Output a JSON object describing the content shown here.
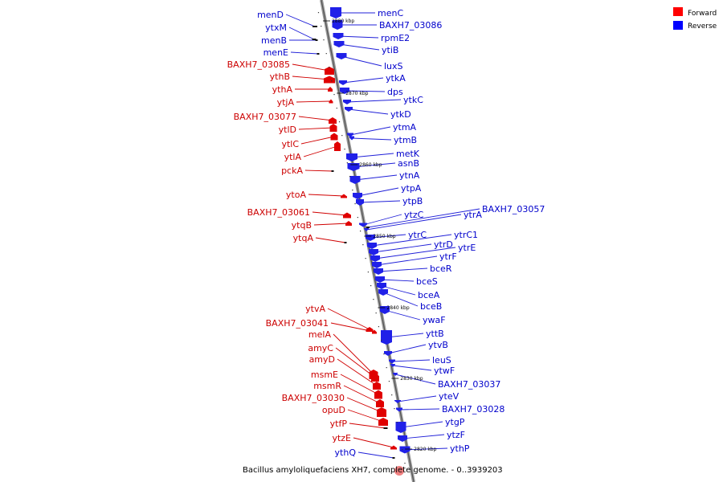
{
  "caption": "Bacillus amyloliquefaciens XH7, complete genome. - 0..3939203",
  "legend": [
    {
      "label": "Forward",
      "color": "#ff0000"
    },
    {
      "label": "Reverse",
      "color": "#0000ff"
    }
  ],
  "colors": {
    "forward": "#e00000",
    "reverse": "#2020e8",
    "forward_line": "#d00000",
    "reverse_line": "#2020d8"
  },
  "tick_labels": [
    "2880 kbp",
    "2870 kbp",
    "2860 kbp",
    "2850 kbp",
    "2840 kbp",
    "2830 kbp",
    "2820 kbp"
  ],
  "forward_genes": [
    "BAXH7_03085",
    "ythB",
    "ythA",
    "ytjA",
    "BAXH7_03077",
    "ytlD",
    "ytlC",
    "ytlA",
    "pckA",
    "ytoA",
    "BAXH7_03061",
    "ytqB",
    "ytqA",
    "ytvA",
    "BAXH7_03041",
    "melA",
    "amyC",
    "amyD",
    "msmE",
    "msmR",
    "BAXH7_03030",
    "opuD",
    "ytfP",
    "ytzE"
  ],
  "reverse_genes_left": [
    "menD",
    "ytxM",
    "menB",
    "menE",
    "ythQ"
  ],
  "reverse_genes_right": [
    "menC",
    "BAXH7_03086",
    "rpmE2",
    "ytiB",
    "luxS",
    "ytkA",
    "dps",
    "ytkC",
    "ytkD",
    "ytmA",
    "ytmB",
    "metK",
    "asnB",
    "ytnA",
    "ytpA",
    "ytpB",
    "ytzC",
    "ytrA",
    "BAXH7_03057",
    "ytrC",
    "ytrC1",
    "ytrD",
    "ytrE",
    "ytrF",
    "bceR",
    "bceS",
    "bceA",
    "bceB",
    "ywaF",
    "yttB",
    "ytvB",
    "leuS",
    "ytwF",
    "BAXH7_03037",
    "yteV",
    "BAXH7_03028",
    "ytgP",
    "ytzF",
    "ythP"
  ]
}
